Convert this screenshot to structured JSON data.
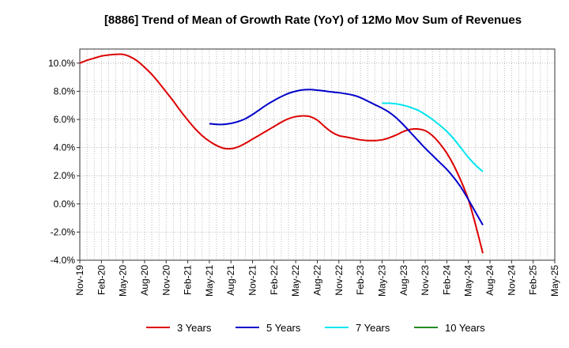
{
  "chart_data": {
    "type": "line",
    "title": "[8886]  Trend of Mean of Growth Rate (YoY) of 12Mo Mov Sum of Revenues",
    "xlabel": "",
    "ylabel": "",
    "ylim": [
      -4.0,
      11.0
    ],
    "y_ticks": [
      -4.0,
      -2.0,
      0.0,
      2.0,
      4.0,
      6.0,
      8.0,
      10.0
    ],
    "y_tick_labels": [
      "-4.0%",
      "-2.0%",
      "0.0%",
      "2.0%",
      "4.0%",
      "6.0%",
      "8.0%",
      "10.0%"
    ],
    "x_ticks": [
      "Nov-19",
      "Feb-20",
      "May-20",
      "Aug-20",
      "Nov-20",
      "Feb-21",
      "May-21",
      "Aug-21",
      "Nov-21",
      "Feb-22",
      "May-22",
      "Aug-22",
      "Nov-22",
      "Feb-23",
      "May-23",
      "Aug-23",
      "Nov-23",
      "Feb-24",
      "May-24",
      "Aug-24",
      "Nov-24",
      "Feb-25",
      "May-25"
    ],
    "x_start": "Nov-19",
    "grid": true,
    "legend_position": "bottom",
    "series": [
      {
        "name": "3 Years",
        "color": "#dd0000",
        "start_index": 0,
        "values": [
          10.0,
          10.2,
          10.35,
          10.5,
          10.58,
          10.62,
          10.62,
          10.45,
          10.15,
          9.7,
          9.2,
          8.6,
          7.95,
          7.3,
          6.6,
          5.95,
          5.35,
          4.85,
          4.45,
          4.15,
          3.95,
          3.92,
          4.05,
          4.3,
          4.6,
          4.9,
          5.2,
          5.5,
          5.8,
          6.05,
          6.2,
          6.25,
          6.2,
          5.95,
          5.5,
          5.1,
          4.85,
          4.75,
          4.65,
          4.55,
          4.5,
          4.5,
          4.55,
          4.7,
          4.9,
          5.15,
          5.3,
          5.32,
          5.2,
          4.85,
          4.3,
          3.6,
          2.7,
          1.6,
          0.3,
          -1.5,
          -3.5
        ]
      },
      {
        "name": "5 Years",
        "color": "#0000cc",
        "start_index": 18,
        "values": [
          5.7,
          5.65,
          5.65,
          5.72,
          5.85,
          6.05,
          6.35,
          6.7,
          7.05,
          7.35,
          7.62,
          7.85,
          8.0,
          8.1,
          8.12,
          8.08,
          8.02,
          7.95,
          7.9,
          7.82,
          7.72,
          7.55,
          7.3,
          7.05,
          6.8,
          6.5,
          6.1,
          5.6,
          5.05,
          4.5,
          3.95,
          3.45,
          2.95,
          2.45,
          1.85,
          1.15,
          0.3,
          -0.6,
          -1.5
        ]
      },
      {
        "name": "7 Years",
        "color": "#00e5ee",
        "start_index": 42,
        "values": [
          7.15,
          7.15,
          7.1,
          7.0,
          6.85,
          6.65,
          6.35,
          6.0,
          5.6,
          5.15,
          4.6,
          3.95,
          3.3,
          2.75,
          2.3
        ]
      },
      {
        "name": "10 Years",
        "color": "#228b22",
        "start_index": 0,
        "values": []
      }
    ]
  }
}
